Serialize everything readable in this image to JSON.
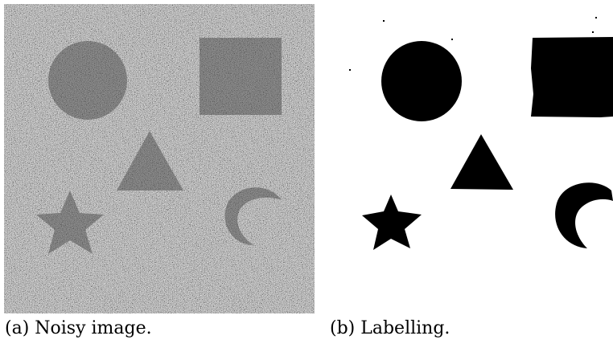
{
  "figure": {
    "panels": [
      {
        "id": "a",
        "caption": "(a) Noisy image.",
        "content": "noisy-image"
      },
      {
        "id": "b",
        "caption": "(b) Labelling.",
        "content": "binary-labelling"
      }
    ],
    "colors": {
      "noise_background": "#8c8c8c",
      "shape_noise": "#5e5e5e",
      "label_foreground": "#000000",
      "label_background": "#ffffff"
    }
  }
}
